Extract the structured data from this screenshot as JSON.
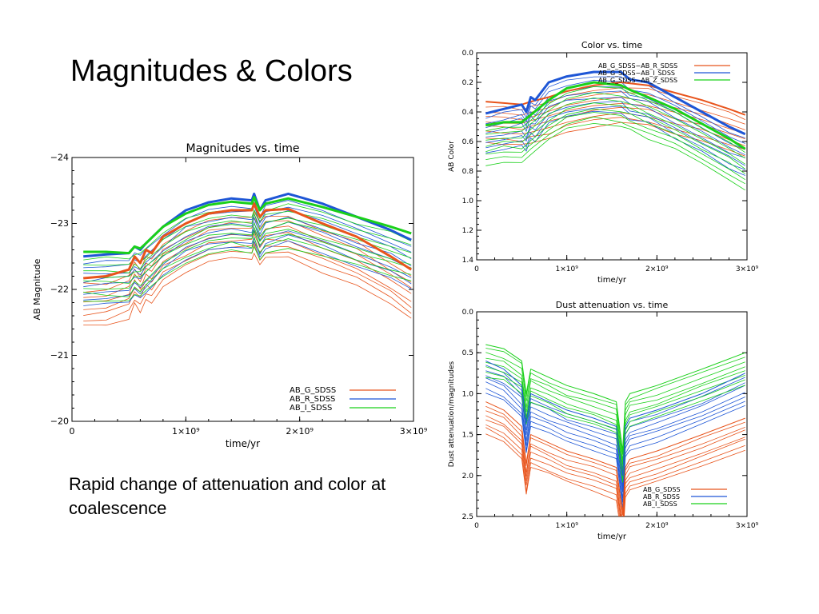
{
  "slide": {
    "title": "Magnitudes & Colors",
    "caption": "Rapid change of attenuation and color at coalescence"
  },
  "colors": {
    "G": "#e8541c",
    "R": "#1e56d6",
    "I": "#1ad01a"
  },
  "chart_data": [
    {
      "type": "line",
      "title": "Magnitudes vs. time",
      "xlabel": "time/yr",
      "ylabel": "AB Magnitude",
      "xlim": [
        0,
        3000000000
      ],
      "ylim": [
        -24,
        -20
      ],
      "y_inverted": true,
      "xticks": [
        0,
        1000000000,
        2000000000,
        3000000000
      ],
      "xtick_labels": [
        "0",
        "1×10⁹",
        "2×10⁹",
        "3×10⁹"
      ],
      "yticks": [
        -24,
        -23,
        -22,
        -21,
        -20
      ],
      "ytick_labels": [
        "−24",
        "−23",
        "−22",
        "−21",
        "−20"
      ],
      "grid": false,
      "legend_position": "bottom-right",
      "legend": [
        "AB_G_SDSS",
        "AB_R_SDSS",
        "AB_I_SDSS"
      ],
      "series": [
        {
          "name": "AB_G_SDSS",
          "color": "#e8541c",
          "width": 3,
          "x": [
            100000000.0,
            300000000.0,
            500000000.0,
            550000000.0,
            600000000.0,
            650000000.0,
            700000000.0,
            800000000.0,
            1000000000.0,
            1200000000.0,
            1400000000.0,
            1580000000.0,
            1600000000.0,
            1650000000.0,
            1700000000.0,
            1900000000.0,
            2200000000.0,
            2500000000.0,
            2800000000.0,
            2980000000.0
          ],
          "y": [
            -22.17,
            -22.2,
            -22.3,
            -22.5,
            -22.4,
            -22.6,
            -22.55,
            -22.8,
            -23.0,
            -23.15,
            -23.2,
            -23.2,
            -23.3,
            -23.1,
            -23.2,
            -23.22,
            -23.0,
            -22.8,
            -22.5,
            -22.3
          ]
        },
        {
          "name": "AB_R_SDSS",
          "color": "#1e56d6",
          "width": 3,
          "x": [
            100000000.0,
            300000000.0,
            500000000.0,
            550000000.0,
            600000000.0,
            650000000.0,
            800000000.0,
            1000000000.0,
            1200000000.0,
            1400000000.0,
            1580000000.0,
            1600000000.0,
            1650000000.0,
            1700000000.0,
            1900000000.0,
            2200000000.0,
            2500000000.0,
            2800000000.0,
            2980000000.0
          ],
          "y": [
            -22.5,
            -22.53,
            -22.55,
            -22.65,
            -22.6,
            -22.7,
            -22.95,
            -23.2,
            -23.32,
            -23.38,
            -23.35,
            -23.45,
            -23.2,
            -23.35,
            -23.45,
            -23.3,
            -23.1,
            -22.9,
            -22.75
          ]
        },
        {
          "name": "AB_I_SDSS",
          "color": "#1ad01a",
          "width": 3,
          "x": [
            100000000.0,
            300000000.0,
            500000000.0,
            550000000.0,
            600000000.0,
            650000000.0,
            800000000.0,
            1000000000.0,
            1200000000.0,
            1400000000.0,
            1580000000.0,
            1600000000.0,
            1650000000.0,
            1700000000.0,
            1900000000.0,
            2200000000.0,
            2500000000.0,
            2800000000.0,
            2980000000.0
          ],
          "y": [
            -22.57,
            -22.57,
            -22.55,
            -22.65,
            -22.62,
            -22.7,
            -22.95,
            -23.15,
            -23.28,
            -23.33,
            -23.3,
            -23.4,
            -23.2,
            -23.3,
            -23.38,
            -23.25,
            -23.1,
            -22.95,
            -22.85
          ]
        }
      ]
    },
    {
      "type": "line",
      "title": "Color vs. time",
      "xlabel": "time/yr",
      "ylabel": "AB Color",
      "xlim": [
        0,
        3000000000
      ],
      "ylim": [
        0.0,
        1.4
      ],
      "y_inverted": true,
      "xticks": [
        0,
        1000000000,
        2000000000,
        3000000000
      ],
      "xtick_labels": [
        "0",
        "1×10⁹",
        "2×10⁹",
        "3×10⁹"
      ],
      "yticks": [
        0.0,
        0.2,
        0.4,
        0.6,
        0.8,
        1.0,
        1.2,
        1.4
      ],
      "ytick_labels": [
        "0.0",
        "0.2",
        "0.4",
        "0.6",
        "0.8",
        "1.0",
        "1.2",
        "1.4"
      ],
      "grid": false,
      "legend_position": "top-right",
      "legend": [
        "AB_G_SDSS−AB_R_SDSS",
        "AB_G_SDSS−AB_I_SDSS",
        "AB_G_SDSS−AB_Z_SDSS"
      ],
      "series": [
        {
          "name": "AB_G_SDSS−AB_R_SDSS",
          "color": "#e8541c",
          "width": 2,
          "x": [
            100000000.0,
            300000000.0,
            500000000.0,
            600000000.0,
            800000000.0,
            1000000000.0,
            1300000000.0,
            1600000000.0,
            1900000000.0,
            2200000000.0,
            2500000000.0,
            2800000000.0,
            2980000000.0
          ],
          "y": [
            0.33,
            0.34,
            0.35,
            0.33,
            0.3,
            0.26,
            0.22,
            0.2,
            0.22,
            0.27,
            0.32,
            0.38,
            0.42
          ]
        },
        {
          "name": "AB_G_SDSS−AB_I_SDSS",
          "color": "#1e56d6",
          "width": 3,
          "x": [
            100000000.0,
            300000000.0,
            500000000.0,
            550000000.0,
            600000000.0,
            650000000.0,
            800000000.0,
            1000000000.0,
            1300000000.0,
            1600000000.0,
            1700000000.0,
            1900000000.0,
            2200000000.0,
            2500000000.0,
            2800000000.0,
            2980000000.0
          ],
          "y": [
            0.41,
            0.38,
            0.35,
            0.4,
            0.3,
            0.32,
            0.2,
            0.16,
            0.13,
            0.13,
            0.18,
            0.2,
            0.3,
            0.4,
            0.5,
            0.55
          ]
        },
        {
          "name": "AB_G_SDSS−AB_Z_SDSS",
          "color": "#1ad01a",
          "width": 3,
          "x": [
            100000000.0,
            300000000.0,
            500000000.0,
            600000000.0,
            800000000.0,
            1000000000.0,
            1300000000.0,
            1600000000.0,
            1700000000.0,
            1900000000.0,
            2200000000.0,
            2500000000.0,
            2800000000.0,
            2980000000.0
          ],
          "y": [
            0.49,
            0.47,
            0.47,
            0.42,
            0.32,
            0.24,
            0.2,
            0.22,
            0.25,
            0.3,
            0.38,
            0.48,
            0.58,
            0.65
          ]
        }
      ]
    },
    {
      "type": "line",
      "title": "Dust attenuation vs. time",
      "xlabel": "time/yr",
      "ylabel": "Dust attenuation/magnitudes",
      "xlim": [
        0,
        3000000000
      ],
      "ylim": [
        0.0,
        2.5
      ],
      "y_inverted": true,
      "xticks": [
        0,
        1000000000,
        2000000000,
        3000000000
      ],
      "xtick_labels": [
        "0",
        "1×10⁹",
        "2×10⁹",
        "3×10⁹"
      ],
      "yticks": [
        0.0,
        0.5,
        1.0,
        1.5,
        2.0,
        2.5
      ],
      "ytick_labels": [
        "0.0",
        "0.5",
        "1.0",
        "1.5",
        "2.0",
        "2.5"
      ],
      "grid": false,
      "legend_position": "bottom-right",
      "legend": [
        "AB_G_SDSS",
        "AB_R_SDSS",
        "AB_I_SDSS"
      ],
      "series": [
        {
          "name": "AB_G_SDSS",
          "color": "#e8541c",
          "width": 1,
          "x": [
            100000000.0,
            300000000.0,
            500000000.0,
            550000000.0,
            600000000.0,
            800000000.0,
            1000000000.0,
            1300000000.0,
            1550000000.0,
            1620000000.0,
            1650000000.0,
            1700000000.0,
            2000000000.0,
            2500000000.0,
            2980000000.0
          ],
          "y": [
            1.1,
            1.2,
            1.4,
            1.85,
            1.5,
            1.6,
            1.7,
            1.8,
            1.9,
            2.45,
            1.9,
            1.8,
            1.7,
            1.5,
            1.3
          ]
        },
        {
          "name": "AB_R_SDSS",
          "color": "#1e56d6",
          "width": 1,
          "x": [
            100000000.0,
            300000000.0,
            500000000.0,
            550000000.0,
            600000000.0,
            800000000.0,
            1000000000.0,
            1300000000.0,
            1550000000.0,
            1620000000.0,
            1650000000.0,
            1700000000.0,
            2000000000.0,
            2500000000.0,
            2980000000.0
          ],
          "y": [
            0.6,
            0.7,
            0.9,
            1.35,
            1.0,
            1.1,
            1.2,
            1.3,
            1.4,
            2.0,
            1.4,
            1.3,
            1.2,
            1.0,
            0.75
          ]
        },
        {
          "name": "AB_I_SDSS",
          "color": "#1ad01a",
          "width": 1,
          "x": [
            100000000.0,
            300000000.0,
            500000000.0,
            550000000.0,
            600000000.0,
            800000000.0,
            1000000000.0,
            1300000000.0,
            1550000000.0,
            1620000000.0,
            1650000000.0,
            1700000000.0,
            2000000000.0,
            2500000000.0,
            2980000000.0
          ],
          "y": [
            0.4,
            0.45,
            0.6,
            1.0,
            0.7,
            0.8,
            0.9,
            1.0,
            1.1,
            1.7,
            1.1,
            1.0,
            0.9,
            0.7,
            0.5
          ]
        }
      ]
    }
  ]
}
